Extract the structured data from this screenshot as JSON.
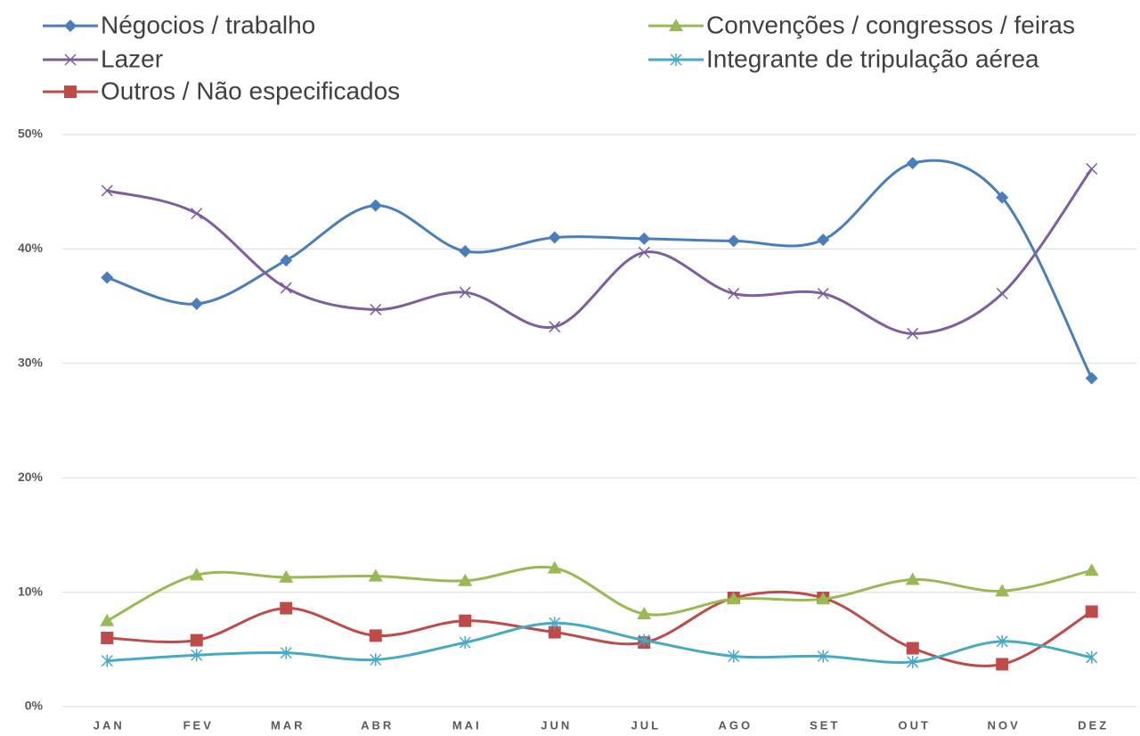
{
  "chart_data": {
    "type": "line",
    "categories": [
      "JAN",
      "FEV",
      "MAR",
      "ABR",
      "MAI",
      "JUN",
      "JUL",
      "AGO",
      "SET",
      "OUT",
      "NOV",
      "DEZ"
    ],
    "series": [
      {
        "name": "Négocios / trabalho",
        "color": "#4a7ebb",
        "marker": "diamond",
        "values": [
          37.5,
          35.2,
          39.0,
          43.8,
          39.8,
          41.0,
          40.9,
          40.7,
          40.8,
          47.5,
          44.5,
          28.7
        ]
      },
      {
        "name": "Lazer",
        "color": "#7d5fa0",
        "marker": "x",
        "values": [
          45.1,
          43.1,
          36.6,
          34.7,
          36.2,
          33.2,
          39.7,
          36.1,
          36.1,
          32.6,
          36.1,
          47.0
        ]
      },
      {
        "name": "Outros / Não especificados",
        "color": "#be4b48",
        "marker": "square",
        "values": [
          6.0,
          5.8,
          8.6,
          6.2,
          7.5,
          6.5,
          5.6,
          9.5,
          9.5,
          5.1,
          3.7,
          8.3
        ]
      },
      {
        "name": "Convenções / congressos / feiras",
        "color": "#98b954",
        "marker": "triangle",
        "values": [
          7.5,
          11.5,
          11.3,
          11.4,
          11.0,
          12.1,
          8.1,
          9.4,
          9.4,
          11.1,
          10.1,
          11.9
        ]
      },
      {
        "name": "Integrante de tripulação aérea",
        "color": "#46aac5",
        "marker": "asterisk",
        "values": [
          4.0,
          4.5,
          4.7,
          4.1,
          5.6,
          7.3,
          5.8,
          4.4,
          4.4,
          3.9,
          5.7,
          4.3
        ]
      }
    ],
    "ylim": [
      0,
      50
    ],
    "yticks": [
      {
        "value": 0,
        "label": "0%"
      },
      {
        "value": 10,
        "label": "10%"
      },
      {
        "value": 20,
        "label": "20%"
      },
      {
        "value": 30,
        "label": "30%"
      },
      {
        "value": 40,
        "label": "40%"
      },
      {
        "value": 50,
        "label": "50%"
      }
    ],
    "grid": true,
    "smooth": true,
    "legend": "top"
  }
}
